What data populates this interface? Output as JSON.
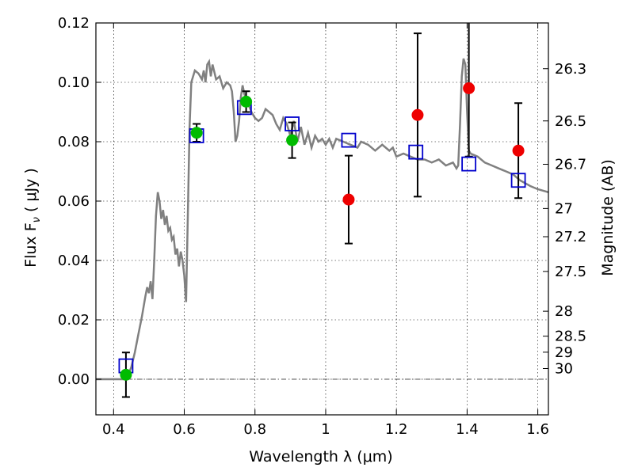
{
  "chart_data": {
    "type": "scatter",
    "xlabel": "Wavelength  λ (μm)",
    "ylabel": "Flux  F",
    "ylabel_sub": "ν",
    "ylabel_unit": "  ( μJy )",
    "y2label": "Magnitude (AB)",
    "xlim": [
      0.35,
      1.63
    ],
    "ylim": [
      -0.012,
      0.12
    ],
    "x_ticks": [
      {
        "value": 0.4,
        "label": "0.4"
      },
      {
        "value": 0.6,
        "label": "0.6"
      },
      {
        "value": 0.8,
        "label": "0.8"
      },
      {
        "value": 1.0,
        "label": "1"
      },
      {
        "value": 1.2,
        "label": "1.2"
      },
      {
        "value": 1.4,
        "label": "1.4"
      },
      {
        "value": 1.6,
        "label": "1.6"
      }
    ],
    "y_ticks": [
      {
        "value": 0.0,
        "label": "0.00"
      },
      {
        "value": 0.02,
        "label": "0.02"
      },
      {
        "value": 0.04,
        "label": "0.04"
      },
      {
        "value": 0.06,
        "label": "0.06"
      },
      {
        "value": 0.08,
        "label": "0.08"
      },
      {
        "value": 0.1,
        "label": "0.10"
      },
      {
        "value": 0.12,
        "label": "0.12"
      }
    ],
    "y2_ticks": [
      {
        "flux": 0.1046,
        "label": "26.3"
      },
      {
        "flux": 0.087,
        "label": "26.5"
      },
      {
        "flux": 0.0724,
        "label": "26.7"
      },
      {
        "flux": 0.0575,
        "label": "27"
      },
      {
        "flux": 0.048,
        "label": "27.2"
      },
      {
        "flux": 0.0363,
        "label": "27.5"
      },
      {
        "flux": 0.0229,
        "label": "28"
      },
      {
        "flux": 0.0145,
        "label": "28.5"
      },
      {
        "flux": 0.0091,
        "label": "29"
      },
      {
        "flux": 0.0036,
        "label": "30"
      }
    ],
    "grid": true,
    "colors": {
      "model": "#808080",
      "green": "#00bb00",
      "red": "#ee0000",
      "square": "#0000cc",
      "errorbar": "#000000",
      "zero_line": "#555555"
    },
    "model_spectrum": [
      [
        0.35,
        0.0
      ],
      [
        0.43,
        0.0
      ],
      [
        0.44,
        0.001
      ],
      [
        0.45,
        0.004
      ],
      [
        0.46,
        0.009
      ],
      [
        0.47,
        0.015
      ],
      [
        0.48,
        0.021
      ],
      [
        0.49,
        0.028
      ],
      [
        0.495,
        0.031
      ],
      [
        0.5,
        0.029
      ],
      [
        0.505,
        0.033
      ],
      [
        0.51,
        0.027
      ],
      [
        0.515,
        0.04
      ],
      [
        0.52,
        0.055
      ],
      [
        0.525,
        0.063
      ],
      [
        0.53,
        0.06
      ],
      [
        0.535,
        0.054
      ],
      [
        0.54,
        0.057
      ],
      [
        0.545,
        0.052
      ],
      [
        0.55,
        0.055
      ],
      [
        0.555,
        0.05
      ],
      [
        0.56,
        0.051
      ],
      [
        0.565,
        0.047
      ],
      [
        0.57,
        0.048
      ],
      [
        0.575,
        0.042
      ],
      [
        0.58,
        0.044
      ],
      [
        0.585,
        0.038
      ],
      [
        0.59,
        0.043
      ],
      [
        0.595,
        0.04
      ],
      [
        0.6,
        0.035
      ],
      [
        0.605,
        0.026
      ],
      [
        0.61,
        0.055
      ],
      [
        0.615,
        0.085
      ],
      [
        0.62,
        0.1
      ],
      [
        0.63,
        0.104
      ],
      [
        0.64,
        0.103
      ],
      [
        0.65,
        0.101
      ],
      [
        0.655,
        0.104
      ],
      [
        0.66,
        0.1
      ],
      [
        0.665,
        0.106
      ],
      [
        0.67,
        0.107
      ],
      [
        0.675,
        0.102
      ],
      [
        0.68,
        0.106
      ],
      [
        0.69,
        0.101
      ],
      [
        0.7,
        0.102
      ],
      [
        0.71,
        0.098
      ],
      [
        0.72,
        0.1
      ],
      [
        0.73,
        0.099
      ],
      [
        0.735,
        0.097
      ],
      [
        0.74,
        0.09
      ],
      [
        0.745,
        0.08
      ],
      [
        0.75,
        0.082
      ],
      [
        0.755,
        0.087
      ],
      [
        0.76,
        0.095
      ],
      [
        0.765,
        0.099
      ],
      [
        0.77,
        0.096
      ],
      [
        0.78,
        0.093
      ],
      [
        0.79,
        0.09
      ],
      [
        0.8,
        0.088
      ],
      [
        0.81,
        0.087
      ],
      [
        0.82,
        0.088
      ],
      [
        0.83,
        0.091
      ],
      [
        0.84,
        0.09
      ],
      [
        0.85,
        0.089
      ],
      [
        0.86,
        0.086
      ],
      [
        0.87,
        0.084
      ],
      [
        0.88,
        0.088
      ],
      [
        0.89,
        0.086
      ],
      [
        0.9,
        0.082
      ],
      [
        0.91,
        0.087
      ],
      [
        0.92,
        0.08
      ],
      [
        0.93,
        0.085
      ],
      [
        0.94,
        0.079
      ],
      [
        0.95,
        0.083
      ],
      [
        0.96,
        0.078
      ],
      [
        0.97,
        0.082
      ],
      [
        0.98,
        0.08
      ],
      [
        0.99,
        0.081
      ],
      [
        1.0,
        0.079
      ],
      [
        1.01,
        0.081
      ],
      [
        1.02,
        0.078
      ],
      [
        1.03,
        0.081
      ],
      [
        1.05,
        0.08
      ],
      [
        1.07,
        0.079
      ],
      [
        1.09,
        0.078
      ],
      [
        1.1,
        0.08
      ],
      [
        1.12,
        0.079
      ],
      [
        1.14,
        0.077
      ],
      [
        1.16,
        0.079
      ],
      [
        1.18,
        0.077
      ],
      [
        1.19,
        0.078
      ],
      [
        1.2,
        0.075
      ],
      [
        1.22,
        0.076
      ],
      [
        1.24,
        0.075
      ],
      [
        1.26,
        0.074
      ],
      [
        1.28,
        0.074
      ],
      [
        1.3,
        0.073
      ],
      [
        1.32,
        0.074
      ],
      [
        1.34,
        0.072
      ],
      [
        1.36,
        0.073
      ],
      [
        1.37,
        0.071
      ],
      [
        1.375,
        0.072
      ],
      [
        1.38,
        0.086
      ],
      [
        1.385,
        0.102
      ],
      [
        1.39,
        0.108
      ],
      [
        1.395,
        0.106
      ],
      [
        1.4,
        0.09
      ],
      [
        1.405,
        0.077
      ],
      [
        1.41,
        0.076
      ],
      [
        1.43,
        0.075
      ],
      [
        1.45,
        0.073
      ],
      [
        1.47,
        0.072
      ],
      [
        1.49,
        0.071
      ],
      [
        1.51,
        0.07
      ],
      [
        1.53,
        0.069
      ],
      [
        1.55,
        0.067
      ],
      [
        1.58,
        0.065
      ],
      [
        1.6,
        0.064
      ],
      [
        1.63,
        0.063
      ]
    ],
    "green_points": [
      {
        "x": 0.435,
        "y": 0.0015,
        "yerr": 0.0075
      },
      {
        "x": 0.635,
        "y": 0.083,
        "yerr": 0.003
      },
      {
        "x": 0.775,
        "y": 0.0935,
        "yerr": 0.0035
      },
      {
        "x": 0.905,
        "y": 0.0805,
        "yerr": 0.006
      }
    ],
    "red_points": [
      {
        "x": 1.065,
        "y": 0.0605,
        "yerr": 0.0148
      },
      {
        "x": 1.26,
        "y": 0.089,
        "yerr": 0.0275
      },
      {
        "x": 1.405,
        "y": 0.098,
        "yerr": 0.023
      },
      {
        "x": 1.545,
        "y": 0.077,
        "yerr": 0.016
      }
    ],
    "model_squares": [
      {
        "x": 0.435,
        "y": 0.0045
      },
      {
        "x": 0.635,
        "y": 0.082
      },
      {
        "x": 0.77,
        "y": 0.0915
      },
      {
        "x": 0.905,
        "y": 0.086
      },
      {
        "x": 1.065,
        "y": 0.0805
      },
      {
        "x": 1.255,
        "y": 0.0765
      },
      {
        "x": 1.405,
        "y": 0.0725
      },
      {
        "x": 1.545,
        "y": 0.067
      }
    ]
  }
}
